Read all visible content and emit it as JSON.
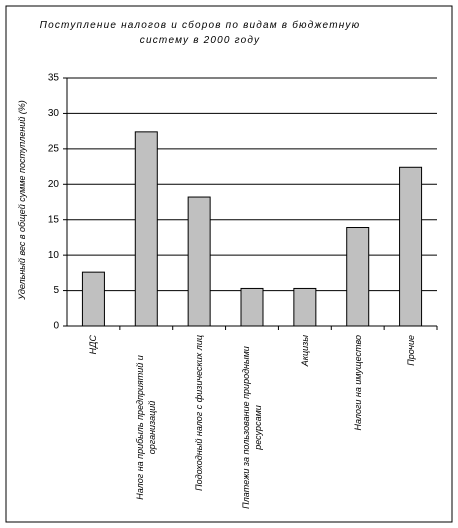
{
  "chart_data": {
    "type": "bar",
    "title": "Поступление налогов и сборов по видам в бюджетную систему в 2000 году",
    "y_label": "Удельный вес в общей сумме поступлений (%)",
    "categories": [
      "НДС",
      "Налог на прибыль предприятий и организаций",
      "Подоходный налог с физических лиц",
      "Платежи за пользование природными ресурсами",
      "Акцизы",
      "Налоги на имущество",
      "Прочие"
    ],
    "values": [
      7.6,
      27.4,
      18.2,
      5.3,
      5.3,
      13.9,
      22.4
    ],
    "color": "#c0c0c0",
    "ylim": [
      0,
      35
    ],
    "yticks": [
      0,
      5,
      10,
      15,
      20,
      25,
      30,
      35
    ],
    "grid": true
  }
}
